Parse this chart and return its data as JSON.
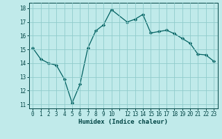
{
  "x": [
    0,
    1,
    2,
    3,
    4,
    5,
    6,
    7,
    8,
    9,
    10,
    12,
    13,
    14,
    15,
    16,
    17,
    18,
    19,
    20,
    21,
    22,
    23
  ],
  "y": [
    15.1,
    14.3,
    14.0,
    13.85,
    12.85,
    11.1,
    12.45,
    15.1,
    16.35,
    16.8,
    17.9,
    17.0,
    17.2,
    17.55,
    16.2,
    16.3,
    16.4,
    16.15,
    15.8,
    15.45,
    14.65,
    14.6,
    14.15
  ],
  "xlabel": "Humidex (Indice chaleur)",
  "xlim": [
    -0.5,
    23.5
  ],
  "ylim": [
    10.7,
    18.4
  ],
  "yticks": [
    11,
    12,
    13,
    14,
    15,
    16,
    17,
    18
  ],
  "xtick_labels": [
    "0",
    "1",
    "2",
    "3",
    "4",
    "5",
    "6",
    "7",
    "8",
    "9",
    "10",
    "",
    "12",
    "13",
    "14",
    "15",
    "16",
    "17",
    "18",
    "19",
    "20",
    "21",
    "22",
    "23"
  ],
  "xtick_positions": [
    0,
    1,
    2,
    3,
    4,
    5,
    6,
    7,
    8,
    9,
    10,
    11,
    12,
    13,
    14,
    15,
    16,
    17,
    18,
    19,
    20,
    21,
    22,
    23
  ],
  "line_color": "#006060",
  "marker_color": "#006060",
  "bg_color": "#c0eaea",
  "grid_color": "#90cccc",
  "label_color": "#004444"
}
